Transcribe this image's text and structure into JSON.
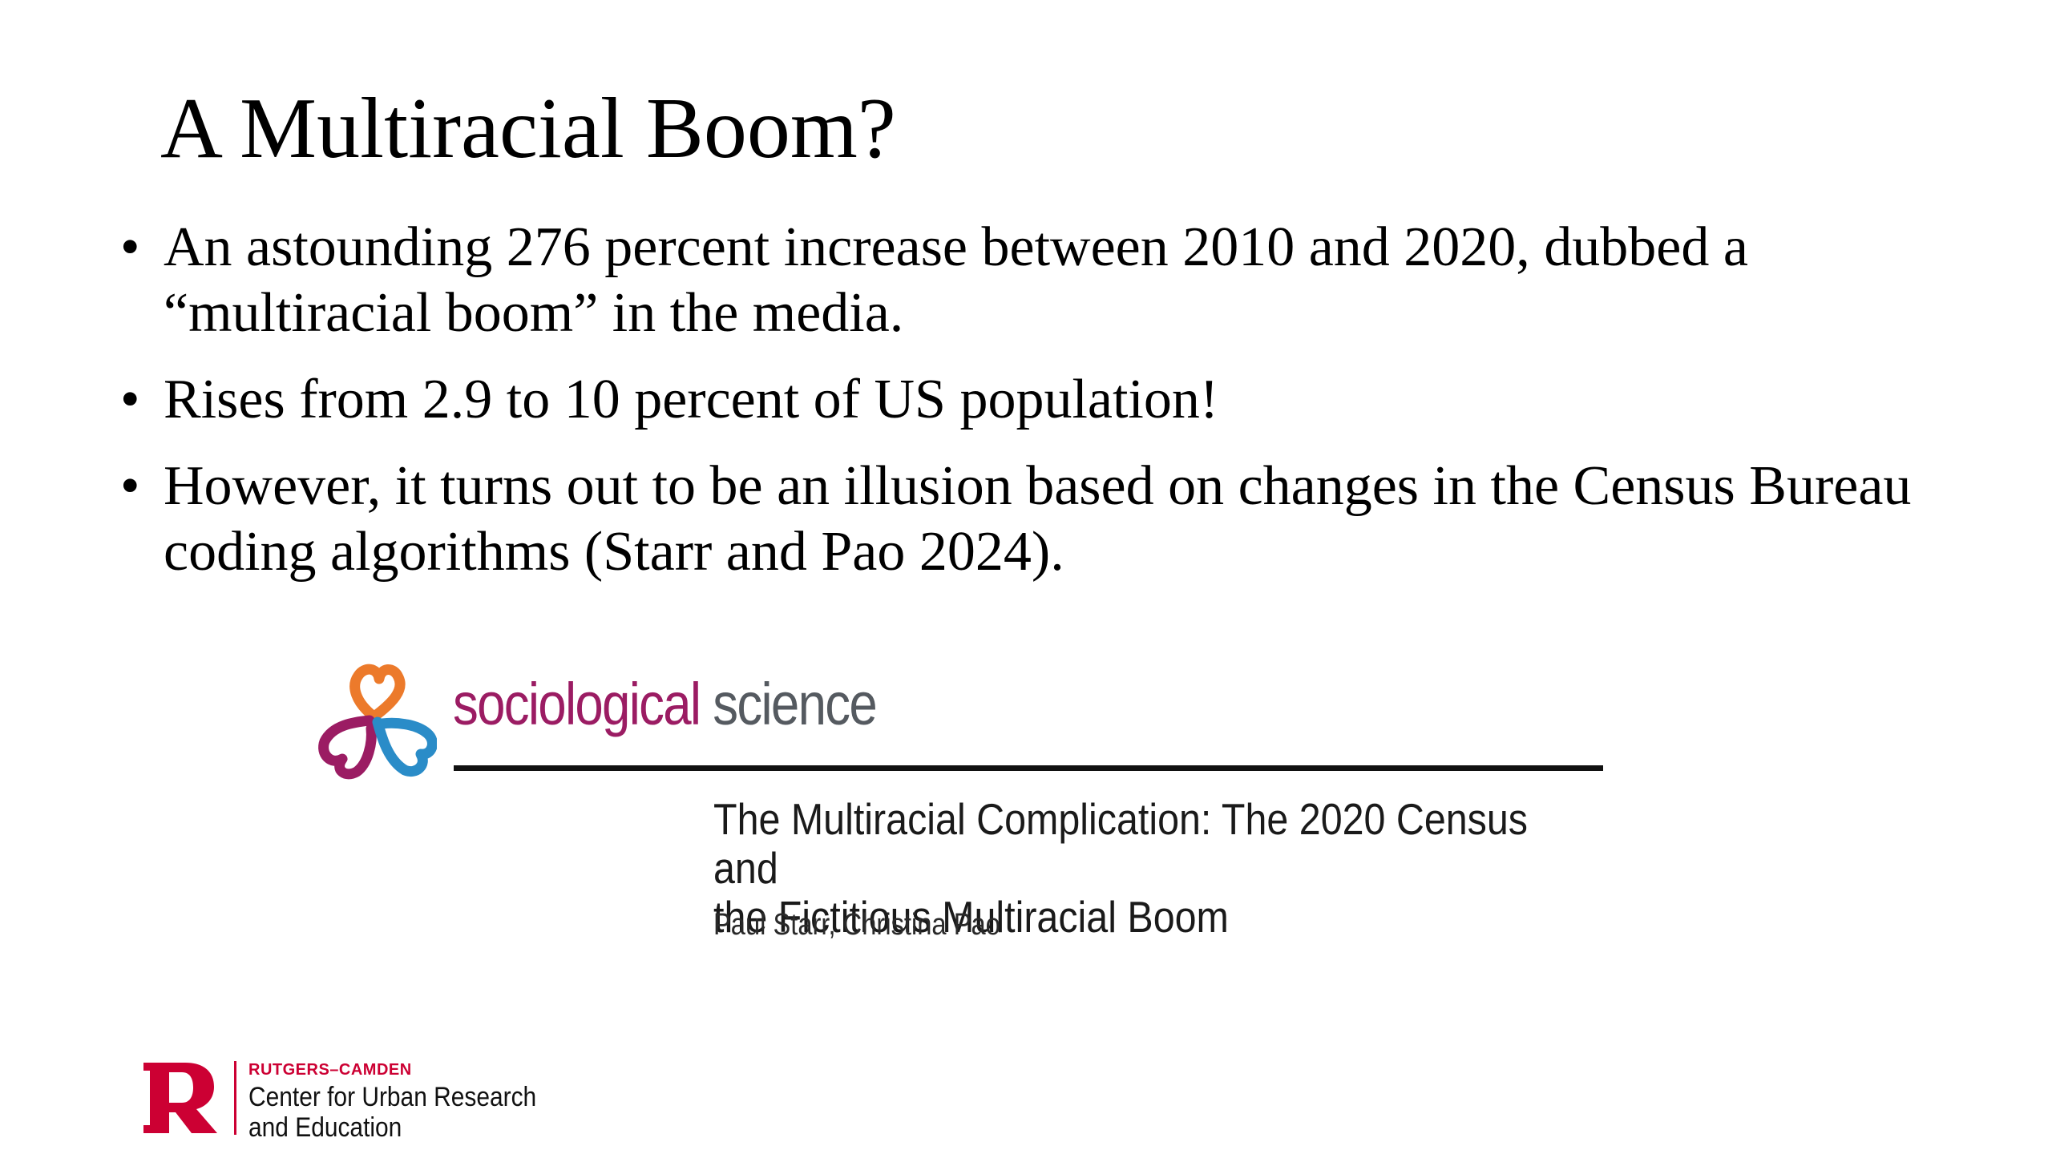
{
  "slide": {
    "title": "A Multiracial Boom?",
    "bullet_symbol": "•",
    "bullets": [
      "An astounding 276 percent increase between 2010 and 2020, dubbed a “multiracial boom” in the media.",
      "Rises from 2.9 to 10 percent of US population!",
      "However, it turns out to be an illusion based on changes in the Census Bureau coding algorithms (Starr and Pao 2024)."
    ]
  },
  "journal": {
    "logo_icon": "sociological-science-logo-icon",
    "name_part1": "sociological",
    "name_part2": " science",
    "colors": {
      "magenta": "#9b1c63",
      "orange": "#ec7a2b",
      "blue": "#2a8cc8",
      "gray": "#555a60"
    }
  },
  "article": {
    "title_line1": "The Multiracial Complication: The 2020 Census and",
    "title_line2": "the Fictitious Multiracial Boom",
    "authors": "Paul Starr, Christina Pao"
  },
  "footer": {
    "logo_icon": "rutgers-r-icon",
    "org": "RUTGERS–CAMDEN",
    "center_line1": "Center for Urban Research",
    "center_line2": "and Education",
    "colors": {
      "scarlet": "#cc0033"
    }
  }
}
